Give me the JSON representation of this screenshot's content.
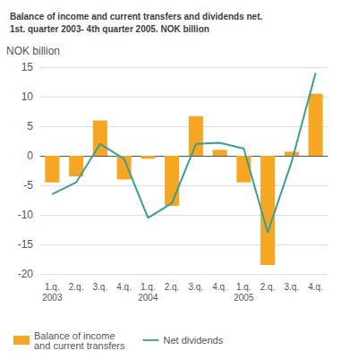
{
  "chart_data": {
    "type": "bar",
    "title": "Balance of income and current transfers and dividends net.\n1st. quarter 2003- 4th quarter 2005. NOK billion",
    "ylabel": "NOK billion",
    "categories": [
      "1.q.\n2003",
      "2.q.",
      "3.q.",
      "4.q.",
      "1.q.\n2004",
      "2.q.",
      "3.q.",
      "4.q.",
      "1.q.\n2005",
      "2.q.",
      "3.q.",
      "4.q."
    ],
    "series": [
      {
        "name": "Balance of income\nand current transfers",
        "type": "bar",
        "color": "#F5A623",
        "values": [
          -4.5,
          -3.5,
          6.0,
          -4.0,
          -0.5,
          -8.5,
          6.7,
          1.0,
          -4.5,
          -18.5,
          0.7,
          10.5
        ]
      },
      {
        "name": "Net dividends",
        "type": "line",
        "color": "#3A9E96",
        "marker": "none",
        "values": [
          -6.5,
          -4.5,
          2.0,
          -0.5,
          -10.5,
          -8.0,
          2.0,
          2.2,
          1.2,
          -13.0,
          -1.0,
          14.0
        ]
      }
    ],
    "ylim": [
      -20,
      15
    ],
    "yticks": [
      -20,
      -15,
      -10,
      -5,
      0,
      5,
      10,
      15
    ],
    "grid": true,
    "legend": "lower left"
  }
}
